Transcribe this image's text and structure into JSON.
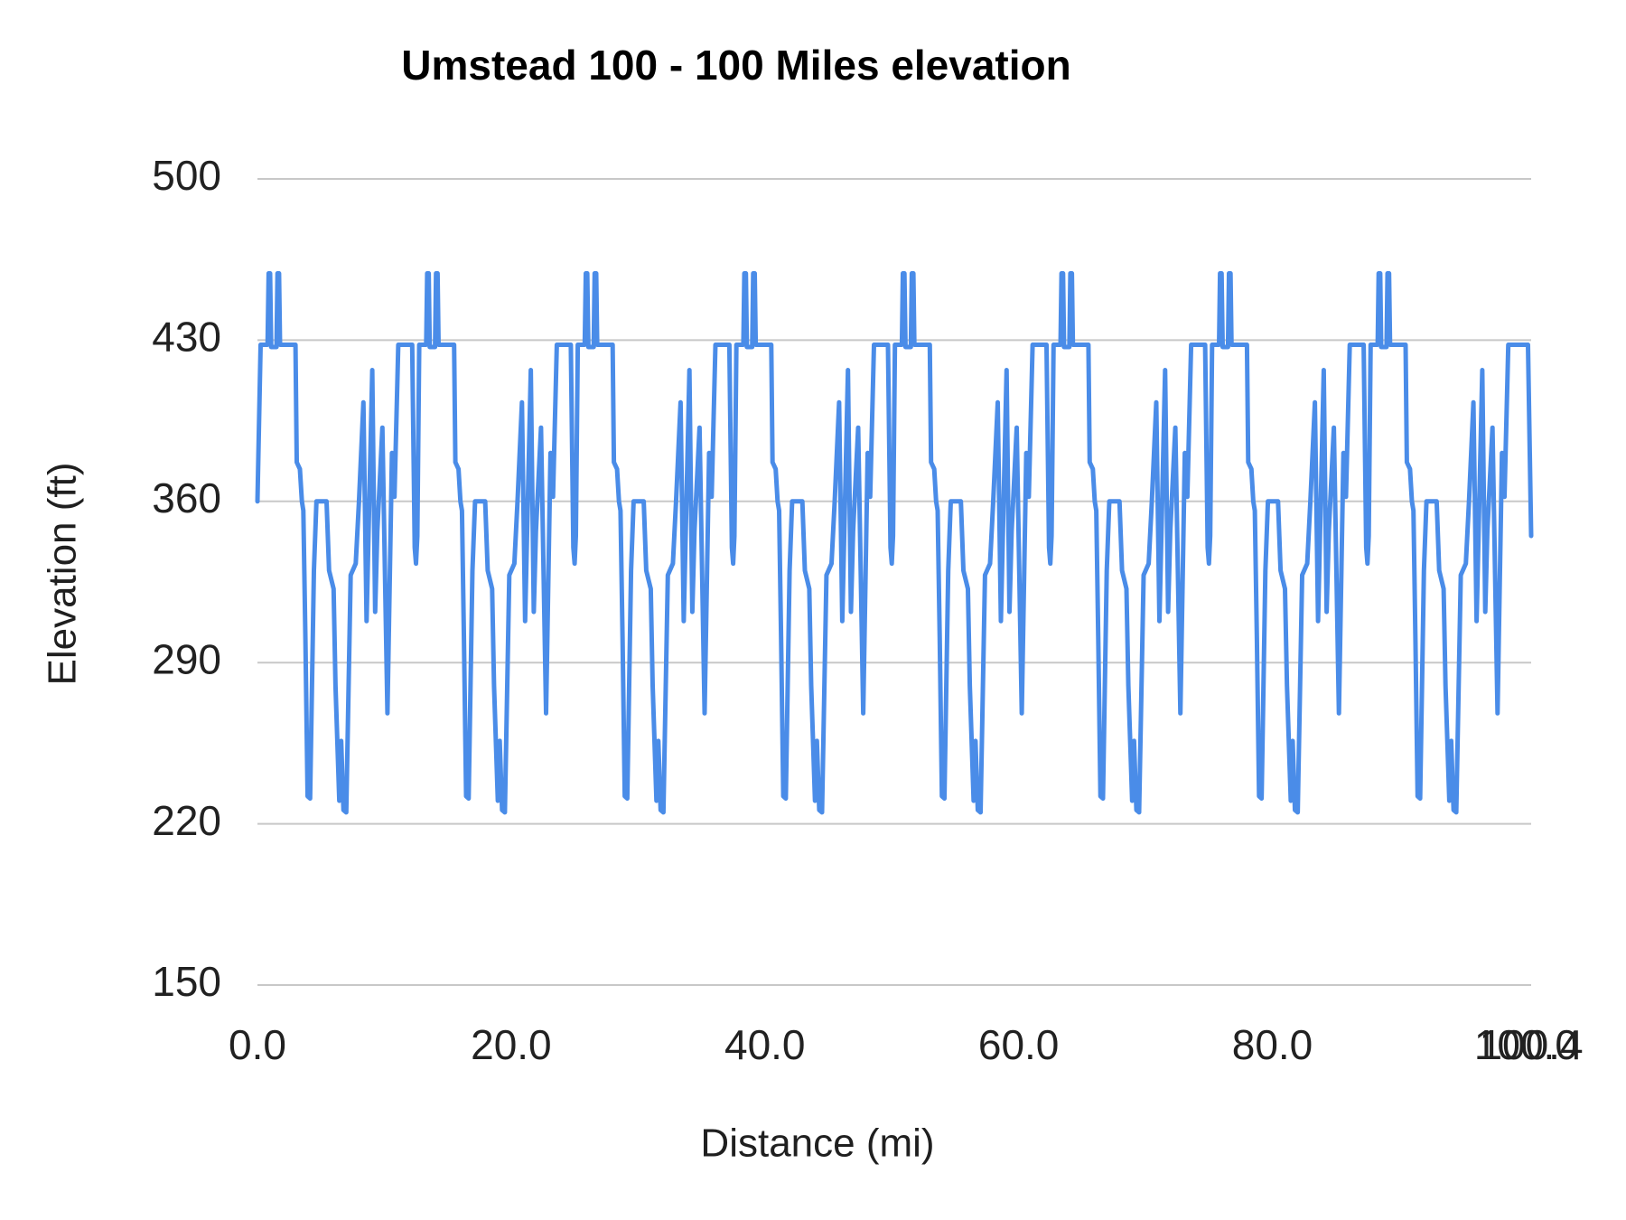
{
  "chart_data": {
    "type": "line",
    "title": "Umstead 100 - 100 Miles elevation",
    "xlabel": "Distance (mi)",
    "ylabel": "Elevation (ft)",
    "xlim": [
      0,
      100.4
    ],
    "ylim": [
      150,
      500
    ],
    "grid": "horizontal-only",
    "legend": "none",
    "background_color": "#ffffff",
    "gridline_color": "#c8c8c8",
    "tick_text_color": "#212121",
    "y_ticks": [
      500,
      430,
      360,
      290,
      220,
      150
    ],
    "y_tick_labels": [
      "500",
      "430",
      "360",
      "290",
      "220",
      "150"
    ],
    "x_tick_values": [
      0,
      20,
      40,
      60,
      80,
      100,
      100.4
    ],
    "x_tick_labels": [
      "0.0",
      "20.0",
      "40.0",
      "60.0",
      "80.0",
      "100.0",
      "100.4"
    ],
    "series": [
      {
        "name": "Elevation",
        "color": "#4a8ce8",
        "stroke_width": 5
      }
    ],
    "structure_note": "Elevation profile of 8 repeated 12.5 mi laps, total 100.4 mi; plateaus ~428 ft with twin spikes to ~459 ft, deepest valleys ~225 ft",
    "series_construction": {
      "lap_count": 8,
      "lap_length_mi": 12.5,
      "total_distance_mi": 100.4,
      "first_point": [
        0,
        360
      ],
      "first_lap_start_offset_mi": 0.25,
      "last_lap_end_offset_mi": 12.2,
      "lap_profile_mi_ft": [
        [
          0.0,
          333
        ],
        [
          0.1,
          345
        ],
        [
          0.25,
          428
        ],
        [
          0.8,
          428
        ],
        [
          0.88,
          459
        ],
        [
          1.0,
          459
        ],
        [
          1.08,
          427
        ],
        [
          1.5,
          427
        ],
        [
          1.58,
          459
        ],
        [
          1.7,
          459
        ],
        [
          1.78,
          428
        ],
        [
          3.0,
          428
        ],
        [
          3.1,
          377
        ],
        [
          3.35,
          374
        ],
        [
          3.5,
          360
        ],
        [
          3.62,
          356
        ],
        [
          3.78,
          300
        ],
        [
          3.95,
          232
        ],
        [
          4.15,
          231
        ],
        [
          4.45,
          330
        ],
        [
          4.65,
          360
        ],
        [
          5.45,
          360
        ],
        [
          5.65,
          330
        ],
        [
          6.0,
          322
        ],
        [
          6.15,
          280
        ],
        [
          6.45,
          230
        ],
        [
          6.6,
          256
        ],
        [
          6.78,
          226
        ],
        [
          7.0,
          225
        ],
        [
          7.35,
          328
        ],
        [
          7.75,
          333
        ],
        [
          8.0,
          360
        ],
        [
          8.35,
          403
        ],
        [
          8.6,
          308
        ],
        [
          9.05,
          417
        ],
        [
          9.28,
          312
        ],
        [
          9.45,
          347
        ],
        [
          9.85,
          392
        ],
        [
          10.25,
          268
        ],
        [
          10.6,
          381
        ],
        [
          10.8,
          362
        ],
        [
          11.1,
          428
        ],
        [
          12.2,
          428
        ],
        [
          12.4,
          340
        ]
      ],
      "tail_points_mi_ft": [
        [
          100.15,
          428
        ],
        [
          100.4,
          345
        ]
      ]
    }
  }
}
